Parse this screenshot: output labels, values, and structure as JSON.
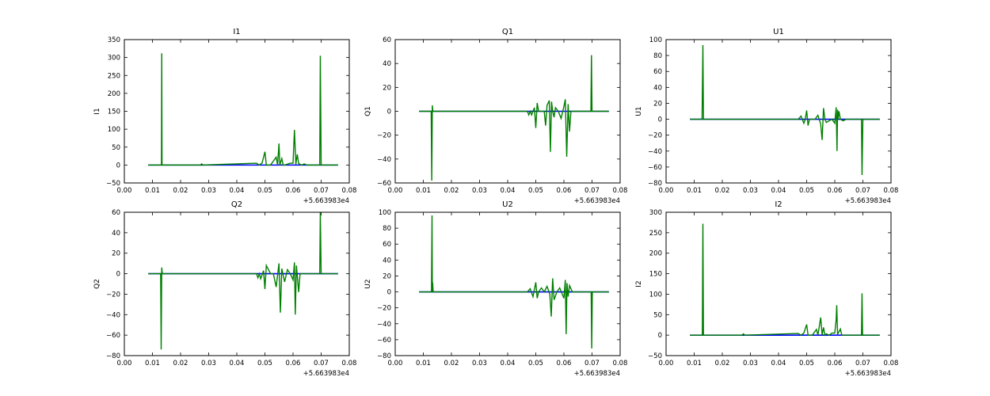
{
  "figure": {
    "background": "#ffffff"
  },
  "chart_data": [
    {
      "type": "line",
      "title": "I1",
      "ylabel": "I1",
      "xlabel": "",
      "x_offset_label": "+5.663983e4",
      "xlim": [
        0.0,
        0.08
      ],
      "ylim": [
        -50,
        350
      ],
      "xticks": [
        "0.00",
        "0.01",
        "0.02",
        "0.03",
        "0.04",
        "0.05",
        "0.06",
        "0.07",
        "0.08"
      ],
      "yticks": [
        "−50",
        "0",
        "50",
        "100",
        "150",
        "200",
        "250",
        "300",
        "350"
      ],
      "grid": false,
      "series": [
        {
          "color": "#0000ff",
          "x": [
            0.0085,
            0.0135,
            0.03,
            0.045,
            0.06,
            0.076
          ],
          "y": [
            0,
            0,
            0,
            0,
            0,
            0
          ]
        },
        {
          "color": "#007f00",
          "x": [
            0.0085,
            0.0132,
            0.0133,
            0.0134,
            0.0135,
            0.027,
            0.0275,
            0.028,
            0.047,
            0.048,
            0.049,
            0.05,
            0.0505,
            0.052,
            0.054,
            0.0545,
            0.055,
            0.0553,
            0.056,
            0.0565,
            0.057,
            0.059,
            0.06,
            0.0605,
            0.061,
            0.0615,
            0.062,
            0.063,
            0.064,
            0.065,
            0.0695,
            0.0697,
            0.07,
            0.071,
            0.076
          ],
          "y": [
            0,
            0,
            312,
            0,
            0,
            0,
            3,
            0,
            5,
            0,
            6,
            37,
            0,
            0,
            22,
            0,
            60,
            0,
            18,
            0,
            0,
            5,
            5,
            98,
            2,
            30,
            4,
            0,
            3,
            0,
            0,
            305,
            0,
            0,
            0
          ]
        }
      ]
    },
    {
      "type": "line",
      "title": "Q1",
      "ylabel": "Q1",
      "xlabel": "",
      "x_offset_label": "+5.663983e4",
      "xlim": [
        0.0,
        0.08
      ],
      "ylim": [
        -60,
        60
      ],
      "xticks": [
        "0.00",
        "0.01",
        "0.02",
        "0.03",
        "0.04",
        "0.05",
        "0.06",
        "0.07",
        "0.08"
      ],
      "yticks": [
        "−60",
        "−40",
        "−20",
        "0",
        "20",
        "40",
        "60"
      ],
      "grid": false,
      "series": [
        {
          "color": "#0000ff",
          "x": [
            0.0085,
            0.0135,
            0.03,
            0.045,
            0.06,
            0.076
          ],
          "y": [
            0,
            0,
            0,
            0,
            0,
            0
          ]
        },
        {
          "color": "#007f00",
          "x": [
            0.0085,
            0.0128,
            0.013,
            0.0132,
            0.0134,
            0.0136,
            0.047,
            0.0475,
            0.048,
            0.0485,
            0.0495,
            0.05,
            0.0505,
            0.051,
            0.053,
            0.0535,
            0.054,
            0.0548,
            0.0552,
            0.0556,
            0.056,
            0.0565,
            0.057,
            0.058,
            0.059,
            0.06,
            0.0605,
            0.061,
            0.0615,
            0.062,
            0.0625,
            0.064,
            0.065,
            0.0696,
            0.0698,
            0.07,
            0.076
          ],
          "y": [
            0,
            0,
            -58,
            5,
            0,
            0,
            0,
            -3,
            0,
            -3,
            3,
            -14,
            7,
            0,
            0,
            -12,
            5,
            9,
            -34,
            8,
            0,
            -5,
            3,
            0,
            -6,
            4,
            10,
            -38,
            6,
            -17,
            0,
            0,
            0,
            0,
            47,
            0,
            0
          ]
        }
      ]
    },
    {
      "type": "line",
      "title": "U1",
      "ylabel": "U1",
      "xlabel": "",
      "x_offset_label": "+5.663983e4",
      "xlim": [
        0.0,
        0.08
      ],
      "ylim": [
        -80,
        100
      ],
      "xticks": [
        "0.00",
        "0.01",
        "0.02",
        "0.03",
        "0.04",
        "0.05",
        "0.06",
        "0.07",
        "0.08"
      ],
      "yticks": [
        "−80",
        "−60",
        "−40",
        "−20",
        "0",
        "20",
        "40",
        "60",
        "80",
        "100"
      ],
      "grid": false,
      "series": [
        {
          "color": "#0000ff",
          "x": [
            0.0085,
            0.0135,
            0.03,
            0.045,
            0.06,
            0.076
          ],
          "y": [
            0,
            0,
            0,
            0,
            0,
            0
          ]
        },
        {
          "color": "#007f00",
          "x": [
            0.0085,
            0.0128,
            0.0131,
            0.0133,
            0.0136,
            0.047,
            0.048,
            0.049,
            0.0495,
            0.05,
            0.0505,
            0.051,
            0.053,
            0.054,
            0.055,
            0.0555,
            0.056,
            0.0565,
            0.057,
            0.059,
            0.06,
            0.0605,
            0.0608,
            0.061,
            0.0612,
            0.0615,
            0.062,
            0.063,
            0.064,
            0.068,
            0.0695,
            0.0697,
            0.07,
            0.076
          ],
          "y": [
            0,
            0,
            93,
            0,
            0,
            0,
            4,
            -5,
            0,
            11,
            -8,
            0,
            0,
            5,
            -6,
            -26,
            14,
            0,
            -4,
            0,
            -5,
            15,
            -40,
            12,
            0,
            10,
            0,
            -2,
            0,
            0,
            0,
            -70,
            0,
            0
          ]
        }
      ]
    },
    {
      "type": "line",
      "title": "Q2",
      "ylabel": "Q2",
      "xlabel": "",
      "x_offset_label": "+5.663983e4",
      "xlim": [
        0.0,
        0.08
      ],
      "ylim": [
        -80,
        60
      ],
      "xticks": [
        "0.00",
        "0.01",
        "0.02",
        "0.03",
        "0.04",
        "0.05",
        "0.06",
        "0.07",
        "0.08"
      ],
      "yticks": [
        "−80",
        "−60",
        "−40",
        "−20",
        "0",
        "20",
        "40",
        "60"
      ],
      "grid": false,
      "series": [
        {
          "color": "#0000ff",
          "x": [
            0.0085,
            0.0135,
            0.03,
            0.045,
            0.06,
            0.076
          ],
          "y": [
            0,
            0,
            0,
            0,
            0,
            0
          ]
        },
        {
          "color": "#007f00",
          "x": [
            0.0085,
            0.0129,
            0.0131,
            0.0133,
            0.0135,
            0.047,
            0.0475,
            0.048,
            0.0485,
            0.0495,
            0.05,
            0.0505,
            0.052,
            0.053,
            0.054,
            0.055,
            0.0555,
            0.056,
            0.057,
            0.058,
            0.059,
            0.06,
            0.0605,
            0.0608,
            0.0612,
            0.062,
            0.0625,
            0.064,
            0.0695,
            0.0697,
            0.07,
            0.076
          ],
          "y": [
            0,
            0,
            -74,
            6,
            0,
            0,
            -4,
            0,
            -5,
            3,
            -15,
            8,
            0,
            0,
            -13,
            10,
            -38,
            5,
            -8,
            4,
            0,
            -6,
            11,
            -40,
            8,
            -18,
            0,
            0,
            0,
            60,
            0,
            0
          ]
        }
      ]
    },
    {
      "type": "line",
      "title": "U2",
      "ylabel": "U2",
      "xlabel": "",
      "x_offset_label": "+5.663983e4",
      "xlim": [
        0.0,
        0.08
      ],
      "ylim": [
        -80,
        100
      ],
      "xticks": [
        "0.00",
        "0.01",
        "0.02",
        "0.03",
        "0.04",
        "0.05",
        "0.06",
        "0.07",
        "0.08"
      ],
      "yticks": [
        "−80",
        "−60",
        "−40",
        "−20",
        "0",
        "20",
        "40",
        "60",
        "80",
        "100"
      ],
      "grid": false,
      "series": [
        {
          "color": "#0000ff",
          "x": [
            0.0085,
            0.0135,
            0.03,
            0.045,
            0.06,
            0.076
          ],
          "y": [
            0,
            0,
            0,
            0,
            0,
            0
          ]
        },
        {
          "color": "#007f00",
          "x": [
            0.0085,
            0.0129,
            0.0131,
            0.0132,
            0.0133,
            0.0135,
            0.047,
            0.048,
            0.049,
            0.05,
            0.0505,
            0.051,
            0.052,
            0.053,
            0.054,
            0.055,
            0.0555,
            0.056,
            0.0565,
            0.0575,
            0.0585,
            0.06,
            0.0605,
            0.0608,
            0.0611,
            0.0615,
            0.062,
            0.063,
            0.065,
            0.0695,
            0.0697,
            0.0699,
            0.0701,
            0.076
          ],
          "y": [
            0,
            0,
            96,
            0,
            12,
            0,
            0,
            4,
            -6,
            12,
            -8,
            0,
            5,
            0,
            7,
            -3,
            -31,
            17,
            -10,
            0,
            5,
            -8,
            15,
            -53,
            11,
            -6,
            8,
            0,
            0,
            0,
            0,
            -71,
            0,
            0
          ]
        }
      ]
    },
    {
      "type": "line",
      "title": "I2",
      "ylabel": "I2",
      "xlabel": "",
      "x_offset_label": "+5.663983e4",
      "xlim": [
        0.0,
        0.08
      ],
      "ylim": [
        -50,
        300
      ],
      "xticks": [
        "0.00",
        "0.01",
        "0.02",
        "0.03",
        "0.04",
        "0.05",
        "0.06",
        "0.07",
        "0.08"
      ],
      "yticks": [
        "−50",
        "0",
        "50",
        "100",
        "150",
        "200",
        "250",
        "300"
      ],
      "grid": false,
      "series": [
        {
          "color": "#0000ff",
          "x": [
            0.0085,
            0.0135,
            0.03,
            0.045,
            0.06,
            0.076
          ],
          "y": [
            0,
            0,
            0,
            0,
            0,
            0
          ]
        },
        {
          "color": "#007f00",
          "x": [
            0.0085,
            0.0129,
            0.0131,
            0.0133,
            0.0135,
            0.027,
            0.0275,
            0.028,
            0.047,
            0.048,
            0.049,
            0.05,
            0.0505,
            0.052,
            0.0535,
            0.054,
            0.055,
            0.0555,
            0.056,
            0.0565,
            0.057,
            0.058,
            0.059,
            0.06,
            0.0605,
            0.0607,
            0.061,
            0.062,
            0.0625,
            0.064,
            0.0695,
            0.0697,
            0.0699,
            0.076
          ],
          "y": [
            0,
            0,
            272,
            0,
            0,
            0,
            3,
            0,
            4,
            0,
            5,
            26,
            0,
            0,
            14,
            0,
            43,
            0,
            19,
            0,
            3,
            0,
            5,
            5,
            38,
            73,
            2,
            15,
            0,
            0,
            0,
            102,
            0,
            0
          ]
        }
      ]
    }
  ]
}
